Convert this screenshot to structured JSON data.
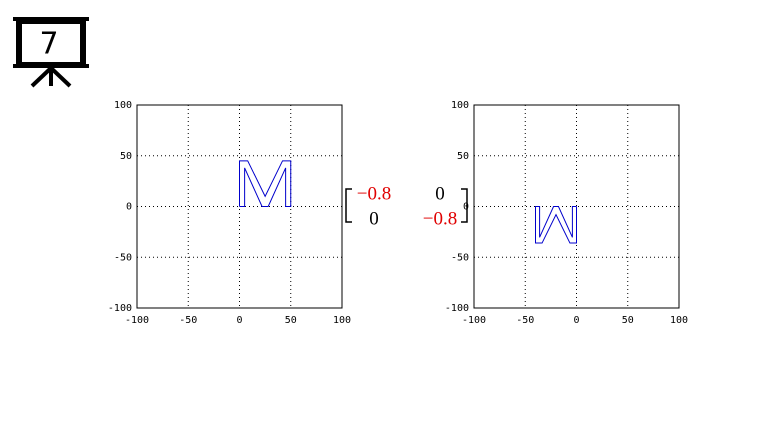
{
  "slide_number": "7",
  "matrix": {
    "rows": [
      [
        "−0.8",
        "0"
      ],
      [
        "0",
        "−0.8"
      ]
    ]
  },
  "chart_data": [
    {
      "type": "line",
      "x": [
        0,
        0,
        8,
        25,
        42,
        50,
        50,
        45,
        45,
        28,
        22,
        5,
        5,
        0
      ],
      "series": [
        {
          "color": "#0000cc",
          "values": [
            0,
            45,
            45,
            10,
            45,
            45,
            0,
            0,
            38,
            0,
            0,
            38,
            0,
            0
          ]
        }
      ],
      "xlim": [
        -100,
        100
      ],
      "ylim": [
        -100,
        100
      ],
      "xticks": [
        -100,
        -50,
        0,
        50,
        100
      ],
      "yticks": [
        -100,
        -50,
        0,
        50,
        100
      ],
      "grid": true
    },
    {
      "type": "line",
      "x": [
        0,
        0,
        -6.4,
        -20,
        -33.6,
        -40,
        -40,
        -36,
        -36,
        -22.4,
        -17.6,
        -4,
        -4,
        0
      ],
      "series": [
        {
          "color": "#0000cc",
          "values": [
            0,
            -36,
            -36,
            -8,
            -36,
            -36,
            0,
            0,
            -30.4,
            0,
            0,
            -30.4,
            0,
            0
          ]
        }
      ],
      "xlim": [
        -100,
        100
      ],
      "ylim": [
        -100,
        100
      ],
      "xticks": [
        -100,
        -50,
        0,
        50,
        100
      ],
      "yticks": [
        -100,
        -50,
        0,
        50,
        100
      ],
      "grid": true
    }
  ]
}
